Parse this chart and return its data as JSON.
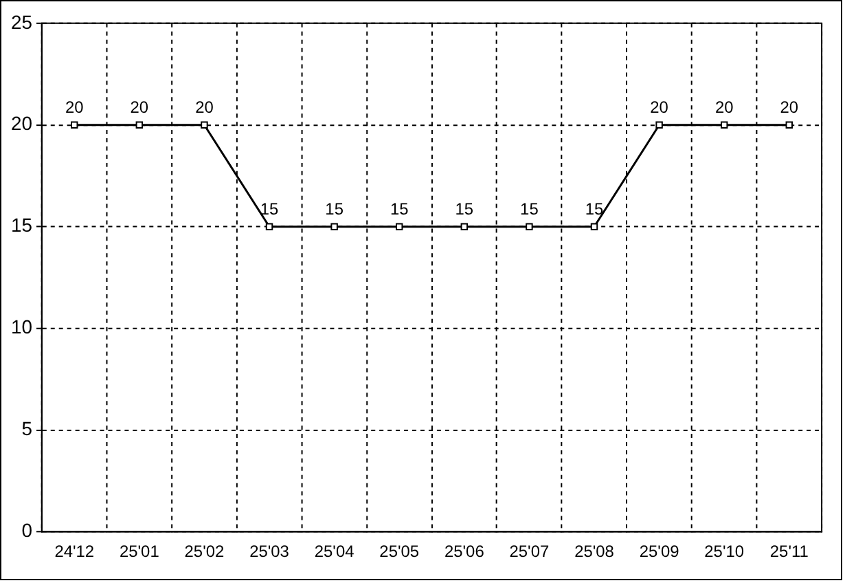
{
  "chart_data": {
    "type": "line",
    "categories": [
      "24'12",
      "25'01",
      "25'02",
      "25'03",
      "25'04",
      "25'05",
      "25'06",
      "25'07",
      "25'08",
      "25'09",
      "25'10",
      "25'11"
    ],
    "series": [
      {
        "color": "#000000",
        "values": [
          20,
          20,
          20,
          15,
          15,
          15,
          15,
          15,
          15,
          20,
          20,
          20
        ]
      }
    ],
    "ylim": [
      0,
      25
    ],
    "yticks": [
      0,
      5,
      10,
      15,
      20,
      25
    ],
    "grid": true,
    "legend": false,
    "marker": "square",
    "line_style": "solid",
    "data_labels": true
  }
}
